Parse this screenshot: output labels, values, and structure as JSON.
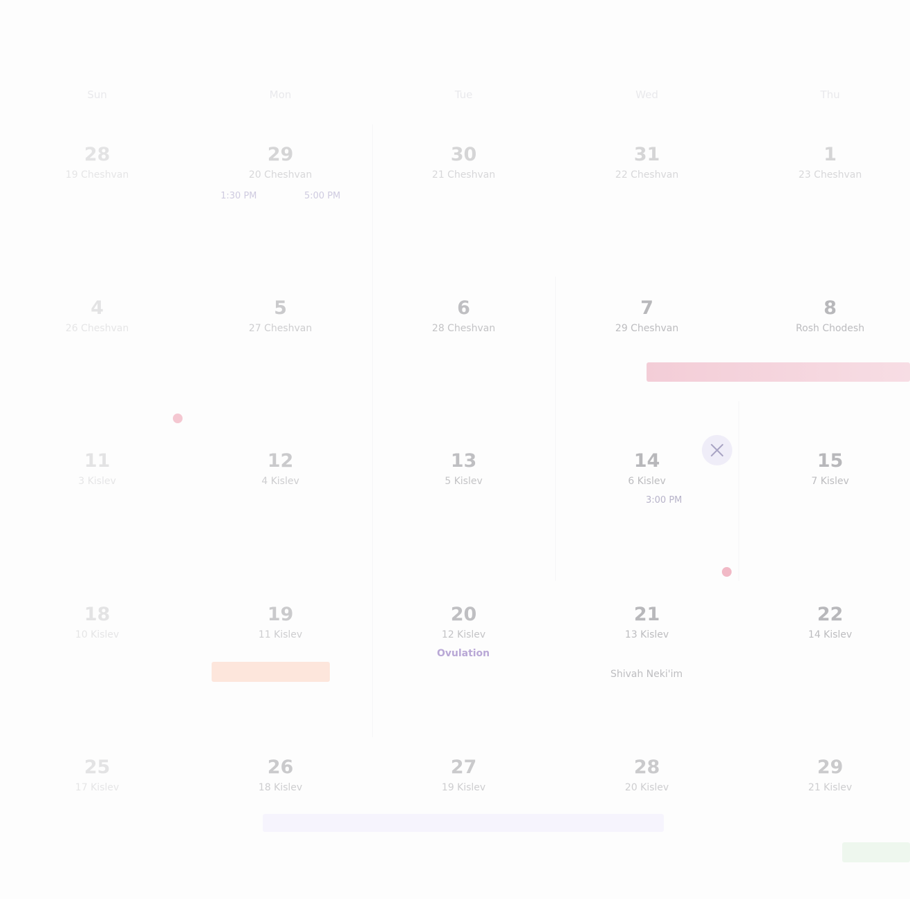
{
  "weekdays": [
    "Sun",
    "Mon",
    "Tue",
    "Wed",
    "Thu"
  ],
  "weeks": [
    [
      {
        "day": "28",
        "hebrew": "19 Cheshvan"
      },
      {
        "day": "29",
        "hebrew": "20 Cheshvan"
      },
      {
        "day": "30",
        "hebrew": "21 Cheshvan"
      },
      {
        "day": "31",
        "hebrew": "22 Cheshvan"
      },
      {
        "day": "1",
        "hebrew": "23 Cheshvan"
      }
    ],
    [
      {
        "day": "4",
        "hebrew": "26 Cheshvan"
      },
      {
        "day": "5",
        "hebrew": "27 Cheshvan"
      },
      {
        "day": "6",
        "hebrew": "28 Cheshvan"
      },
      {
        "day": "7",
        "hebrew": "29 Cheshvan"
      },
      {
        "day": "8",
        "hebrew": "Rosh Chodesh"
      }
    ],
    [
      {
        "day": "11",
        "hebrew": "3 Kislev"
      },
      {
        "day": "12",
        "hebrew": "4 Kislev"
      },
      {
        "day": "13",
        "hebrew": "5 Kislev"
      },
      {
        "day": "14",
        "hebrew": "6 Kislev"
      },
      {
        "day": "15",
        "hebrew": "7 Kislev"
      }
    ],
    [
      {
        "day": "18",
        "hebrew": "10 Kislev"
      },
      {
        "day": "19",
        "hebrew": "11 Kislev"
      },
      {
        "day": "20",
        "hebrew": "12 Kislev"
      },
      {
        "day": "21",
        "hebrew": "13 Kislev"
      },
      {
        "day": "22",
        "hebrew": "14 Kislev"
      }
    ],
    [
      {
        "day": "25",
        "hebrew": "17 Kislev"
      },
      {
        "day": "26",
        "hebrew": "18 Kislev"
      },
      {
        "day": "27",
        "hebrew": "19 Kislev"
      },
      {
        "day": "28",
        "hebrew": "20 Kislev"
      },
      {
        "day": "29",
        "hebrew": "21 Kislev"
      }
    ]
  ],
  "events": {
    "time_start_29": "1:30 PM",
    "time_end_29": "5:00 PM",
    "time_14": "3:00 PM",
    "ovulation": "Ovulation",
    "shivah": "Shivah Neki'im"
  },
  "colors": {
    "period_bar": "#f3cdd7",
    "orange_bar": "#fde6dc",
    "lavender_bar": "#f5f3fd",
    "green_bar": "#eef7ee",
    "dot": "#f1b9c6",
    "ovulation_text": "#b9a8d6"
  }
}
